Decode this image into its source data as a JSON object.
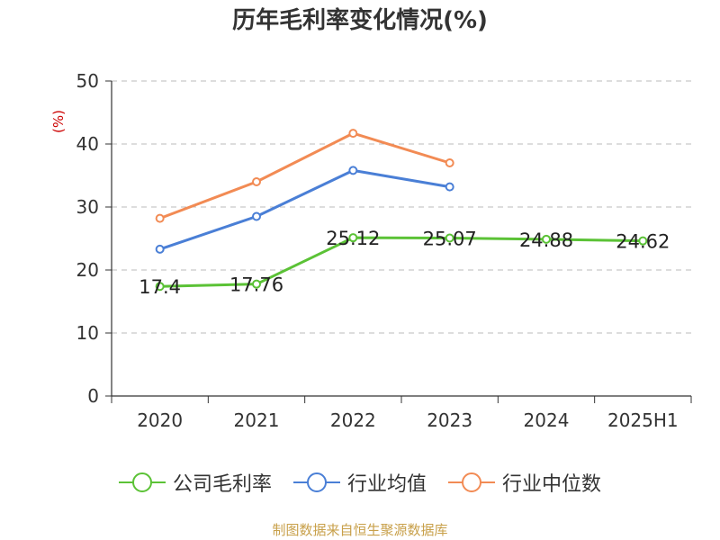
{
  "chart_data": {
    "type": "line",
    "title": "历年毛利率变化情况(%)",
    "ylabel": "(%)",
    "categories": [
      "2020",
      "2021",
      "2022",
      "2023",
      "2024",
      "2025H1"
    ],
    "ylim": [
      0,
      50
    ],
    "yticks": [
      0,
      10,
      20,
      30,
      40,
      50
    ],
    "grid": true,
    "legend_position": "bottom",
    "series": [
      {
        "name": "公司毛利率",
        "color": "#5bc236",
        "values": [
          17.4,
          17.76,
          25.12,
          25.07,
          24.88,
          24.62
        ],
        "labels": [
          "17.4",
          "17.76",
          "25.12",
          "25.07",
          "24.88",
          "24.62"
        ]
      },
      {
        "name": "行业均值",
        "color": "#4a7fd6",
        "values": [
          23.3,
          28.5,
          35.8,
          33.2,
          null,
          null
        ]
      },
      {
        "name": "行业中位数",
        "color": "#f28b54",
        "values": [
          28.2,
          34.0,
          41.7,
          37.0,
          null,
          null
        ]
      }
    ]
  },
  "source": "制图数据来自恒生聚源数据库"
}
